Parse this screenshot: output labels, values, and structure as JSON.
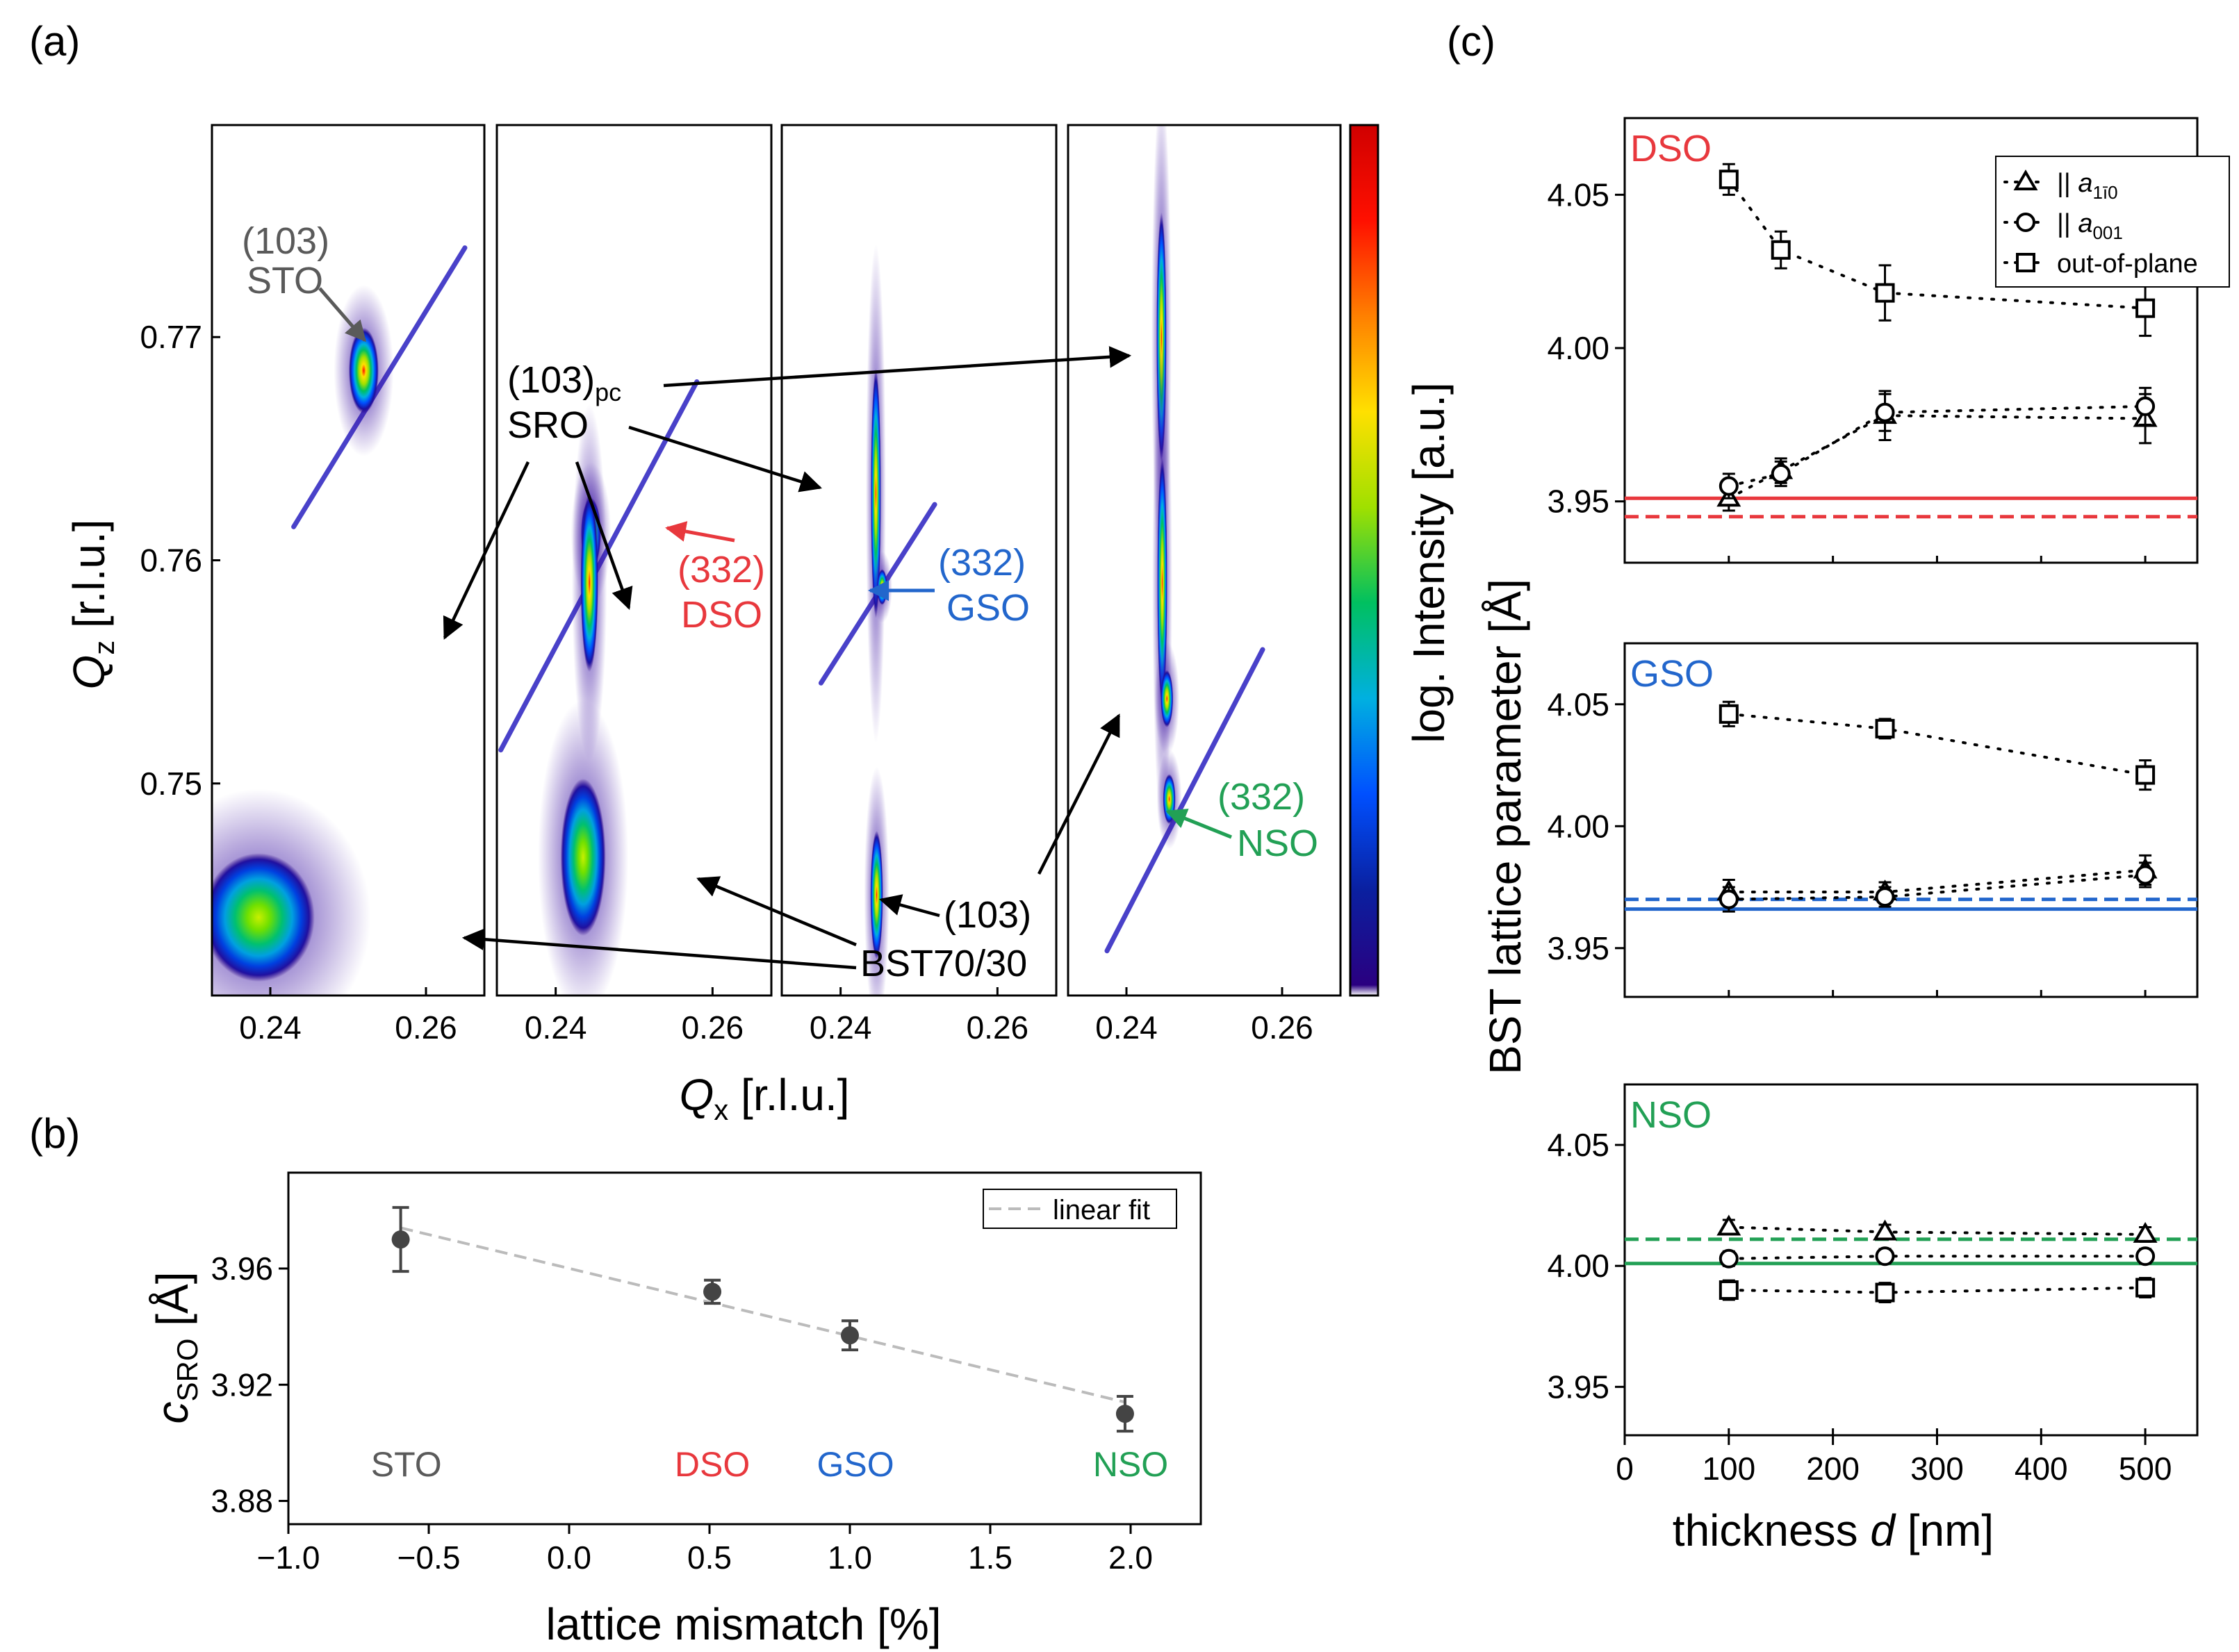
{
  "panel_labels": {
    "a": "(a)",
    "b": "(b)",
    "c": "(c)"
  },
  "colors": {
    "STO": "#5a5a5a",
    "DSO": "#e8383d",
    "GSO": "#2266cc",
    "NSO": "#22a055",
    "fit": "#bbbbbb",
    "marker": "#444444",
    "colorbar": [
      "#ffffff",
      "#2a0080",
      "#0a20a0",
      "#0050ff",
      "#00b0e0",
      "#00c060",
      "#a0e000",
      "#ffe000",
      "#ff8000",
      "#ff1000",
      "#d00000"
    ]
  },
  "chart_data": [
    {
      "id": "a",
      "type": "heatmap",
      "title": "",
      "xlabel_main": "Q",
      "xlabel_sub": "x",
      "xlabel_tail": " [r.l.u.]",
      "ylabel_main": "Q",
      "ylabel_sub": "z",
      "ylabel_tail": " [r.l.u.]",
      "colorbar_label": "log. Intensity [a.u.]",
      "x_ticks": [
        "0.24",
        "0.26"
      ],
      "y_ticks": [
        "0.77",
        "0.76",
        "0.75"
      ],
      "ylim": [
        0.7405,
        0.7795
      ],
      "xlim": [
        0.2325,
        0.2675
      ],
      "panels": [
        {
          "substrate": "STO",
          "peaks": [
            {
              "name": "STO (103)",
              "qx": 0.252,
              "qz": 0.7685,
              "sx": 0.0012,
              "sz": 0.0012
            },
            {
              "name": "BST70/30 (103)",
              "qx": 0.2385,
              "qz": 0.744,
              "sx": 0.0045,
              "sz": 0.0018
            }
          ],
          "streak": {
            "from": [
              0.243,
              0.7615
            ],
            "to": [
              0.265,
              0.774
            ]
          }
        },
        {
          "substrate": "DSO",
          "peaks": [
            {
              "name": "DSO (332)",
              "qx": 0.2445,
              "qz": 0.7612,
              "sx": 0.0008,
              "sz": 0.001
            },
            {
              "name": "SRO (103)pc",
              "qx": 0.2443,
              "qz": 0.759,
              "sx": 0.0007,
              "sz": 0.0025
            },
            {
              "name": "BST70/30 (103)",
              "qx": 0.2435,
              "qz": 0.7467,
              "sx": 0.0018,
              "sz": 0.0022
            }
          ],
          "streak": {
            "from": [
              0.233,
              0.7515
            ],
            "to": [
              0.258,
              0.768
            ]
          }
        },
        {
          "substrate": "GSO",
          "peaks": [
            {
              "name": "SRO (103)pc",
              "qx": 0.2445,
              "qz": 0.763,
              "sx": 0.0004,
              "sz": 0.0035
            },
            {
              "name": "GSO (332)",
              "qx": 0.2453,
              "qz": 0.7588,
              "sx": 0.0004,
              "sz": 0.0005
            },
            {
              "name": "BST70/30 (103)",
              "qx": 0.2446,
              "qz": 0.745,
              "sx": 0.0005,
              "sz": 0.0018
            }
          ],
          "streak": {
            "from": [
              0.2375,
              0.7545
            ],
            "to": [
              0.252,
              0.7625
            ]
          }
        },
        {
          "substrate": "NSO",
          "peaks": [
            {
              "name": "SRO (103)pc",
              "qx": 0.2445,
              "qz": 0.77,
              "sx": 0.0004,
              "sz": 0.0035
            },
            {
              "name": "SRO (103)pc lower",
              "qx": 0.2446,
              "qz": 0.759,
              "sx": 0.0004,
              "sz": 0.0035
            },
            {
              "name": "BST70/30 (103)",
              "qx": 0.2452,
              "qz": 0.7538,
              "sx": 0.0005,
              "sz": 0.0008
            },
            {
              "name": "NSO (332)",
              "qx": 0.2455,
              "qz": 0.7493,
              "sx": 0.0005,
              "sz": 0.0007
            }
          ],
          "streak": {
            "from": [
              0.2375,
              0.7425
            ],
            "to": [
              0.2575,
              0.756
            ]
          }
        }
      ],
      "annotations": {
        "sto_index": "(103)",
        "sto_name": "STO",
        "sro_index": "(103)",
        "sro_sub": "pc",
        "sro_name": "SRO",
        "dso_index": "(332)",
        "dso_name": "DSO",
        "gso_index": "(332)",
        "gso_name": "GSO",
        "bst_index": "(103)",
        "bst_name": "BST70/30",
        "nso_index": "(332)",
        "nso_name": "NSO"
      }
    },
    {
      "id": "b",
      "type": "scatter",
      "title": "",
      "xlabel": "lattice mismatch [%]",
      "ylabel_main": "c",
      "ylabel_sub": "SRO",
      "ylabel_tail": " [Å]",
      "xlim": [
        -1.0,
        2.25
      ],
      "ylim": [
        3.872,
        3.993
      ],
      "x_ticks": [
        -1.0,
        -0.5,
        0.0,
        0.5,
        1.0,
        1.5,
        2.0
      ],
      "x_tick_labels": [
        "−1.0",
        "−0.5",
        "0.0",
        "0.5",
        "1.0",
        "1.5",
        "2.0"
      ],
      "y_ticks": [
        3.88,
        3.92,
        3.96
      ],
      "y_tick_labels": [
        "3.88",
        "3.92",
        "3.96"
      ],
      "legend": "linear fit",
      "legend_position": "top-right",
      "points": [
        {
          "label": "STO",
          "x": -0.6,
          "y": 3.97,
          "err": 0.011
        },
        {
          "label": "DSO",
          "x": 0.51,
          "y": 3.952,
          "err": 0.004
        },
        {
          "label": "GSO",
          "x": 1.0,
          "y": 3.937,
          "err": 0.005
        },
        {
          "label": "NSO",
          "x": 1.98,
          "y": 3.91,
          "err": 0.006
        }
      ],
      "fit": {
        "x": [
          -0.6,
          1.98
        ],
        "y": [
          3.974,
          3.914
        ]
      },
      "substrate_labels": [
        {
          "text": "STO",
          "x": -0.58,
          "color_key": "STO"
        },
        {
          "text": "DSO",
          "x": 0.51,
          "color_key": "DSO"
        },
        {
          "text": "GSO",
          "x": 1.02,
          "color_key": "GSO"
        },
        {
          "text": "NSO",
          "x": 2.0,
          "color_key": "NSO"
        }
      ]
    },
    {
      "id": "c",
      "type": "line",
      "title": "",
      "xlabel_main": "thickness ",
      "xlabel_var": "d",
      "xlabel_tail": " [nm]",
      "ylabel": "BST lattice parameter [Å]",
      "xlim": [
        0,
        550
      ],
      "ylim": [
        3.93,
        4.075
      ],
      "x_ticks": [
        0,
        100,
        200,
        300,
        400,
        500
      ],
      "x_tick_labels": [
        "0",
        "100",
        "200",
        "300",
        "400",
        "500"
      ],
      "y_ticks": [
        3.95,
        4.0,
        4.05
      ],
      "y_tick_labels": [
        "3.95",
        "4.00",
        "4.05"
      ],
      "legend": [
        {
          "marker": "triangle",
          "prefix": "|| a",
          "sub": "1ī0"
        },
        {
          "marker": "circle",
          "prefix": "|| a",
          "sub": "001"
        },
        {
          "marker": "square",
          "prefix": "out-of-plane",
          "sub": ""
        }
      ],
      "legend_position": "top-right",
      "subpanels": [
        {
          "name": "DSO",
          "color_key": "DSO",
          "solid": 3.951,
          "dashed": 3.945,
          "series": [
            {
              "name": "|| a1ī0",
              "marker": "triangle",
              "x": [
                100,
                150,
                250,
                500
              ],
              "y": [
                3.951,
                3.96,
                3.978,
                3.977
              ],
              "err": [
                0.004,
                0.004,
                0.008,
                0.008
              ]
            },
            {
              "name": "|| a001",
              "marker": "circle",
              "x": [
                100,
                150,
                250,
                500
              ],
              "y": [
                3.955,
                3.959,
                3.979,
                3.981
              ],
              "err": [
                0.004,
                0.004,
                0.006,
                0.006
              ]
            },
            {
              "name": "out-of-plane",
              "marker": "square",
              "x": [
                100,
                150,
                250,
                500
              ],
              "y": [
                4.055,
                4.032,
                4.018,
                4.013
              ],
              "err": [
                0.005,
                0.006,
                0.009,
                0.009
              ]
            }
          ]
        },
        {
          "name": "GSO",
          "color_key": "GSO",
          "solid": 3.966,
          "dashed": 3.97,
          "series": [
            {
              "name": "|| a1ī0",
              "marker": "triangle",
              "x": [
                100,
                250,
                500
              ],
              "y": [
                3.973,
                3.973,
                3.982
              ],
              "err": [
                0.005,
                0.004,
                0.006
              ]
            },
            {
              "name": "|| a001",
              "marker": "circle",
              "x": [
                100,
                250,
                500
              ],
              "y": [
                3.97,
                3.971,
                3.98
              ],
              "err": [
                0.005,
                0.004,
                0.005
              ]
            },
            {
              "name": "out-of-plane",
              "marker": "square",
              "x": [
                100,
                250,
                500
              ],
              "y": [
                4.046,
                4.04,
                4.021
              ],
              "err": [
                0.005,
                0.004,
                0.006
              ]
            }
          ]
        },
        {
          "name": "NSO",
          "color_key": "NSO",
          "solid": 4.001,
          "dashed": 4.011,
          "series": [
            {
              "name": "|| a1ī0",
              "marker": "triangle",
              "x": [
                100,
                250,
                500
              ],
              "y": [
                4.016,
                4.014,
                4.013
              ],
              "err": [
                0.003,
                0.003,
                0.003
              ]
            },
            {
              "name": "|| a001",
              "marker": "circle",
              "x": [
                100,
                250,
                500
              ],
              "y": [
                4.003,
                4.004,
                4.004
              ],
              "err": [
                0.003,
                0.003,
                0.003
              ]
            },
            {
              "name": "out-of-plane",
              "marker": "square",
              "x": [
                100,
                250,
                500
              ],
              "y": [
                3.99,
                3.989,
                3.991
              ],
              "err": [
                0.004,
                0.004,
                0.004
              ]
            }
          ]
        }
      ]
    }
  ]
}
